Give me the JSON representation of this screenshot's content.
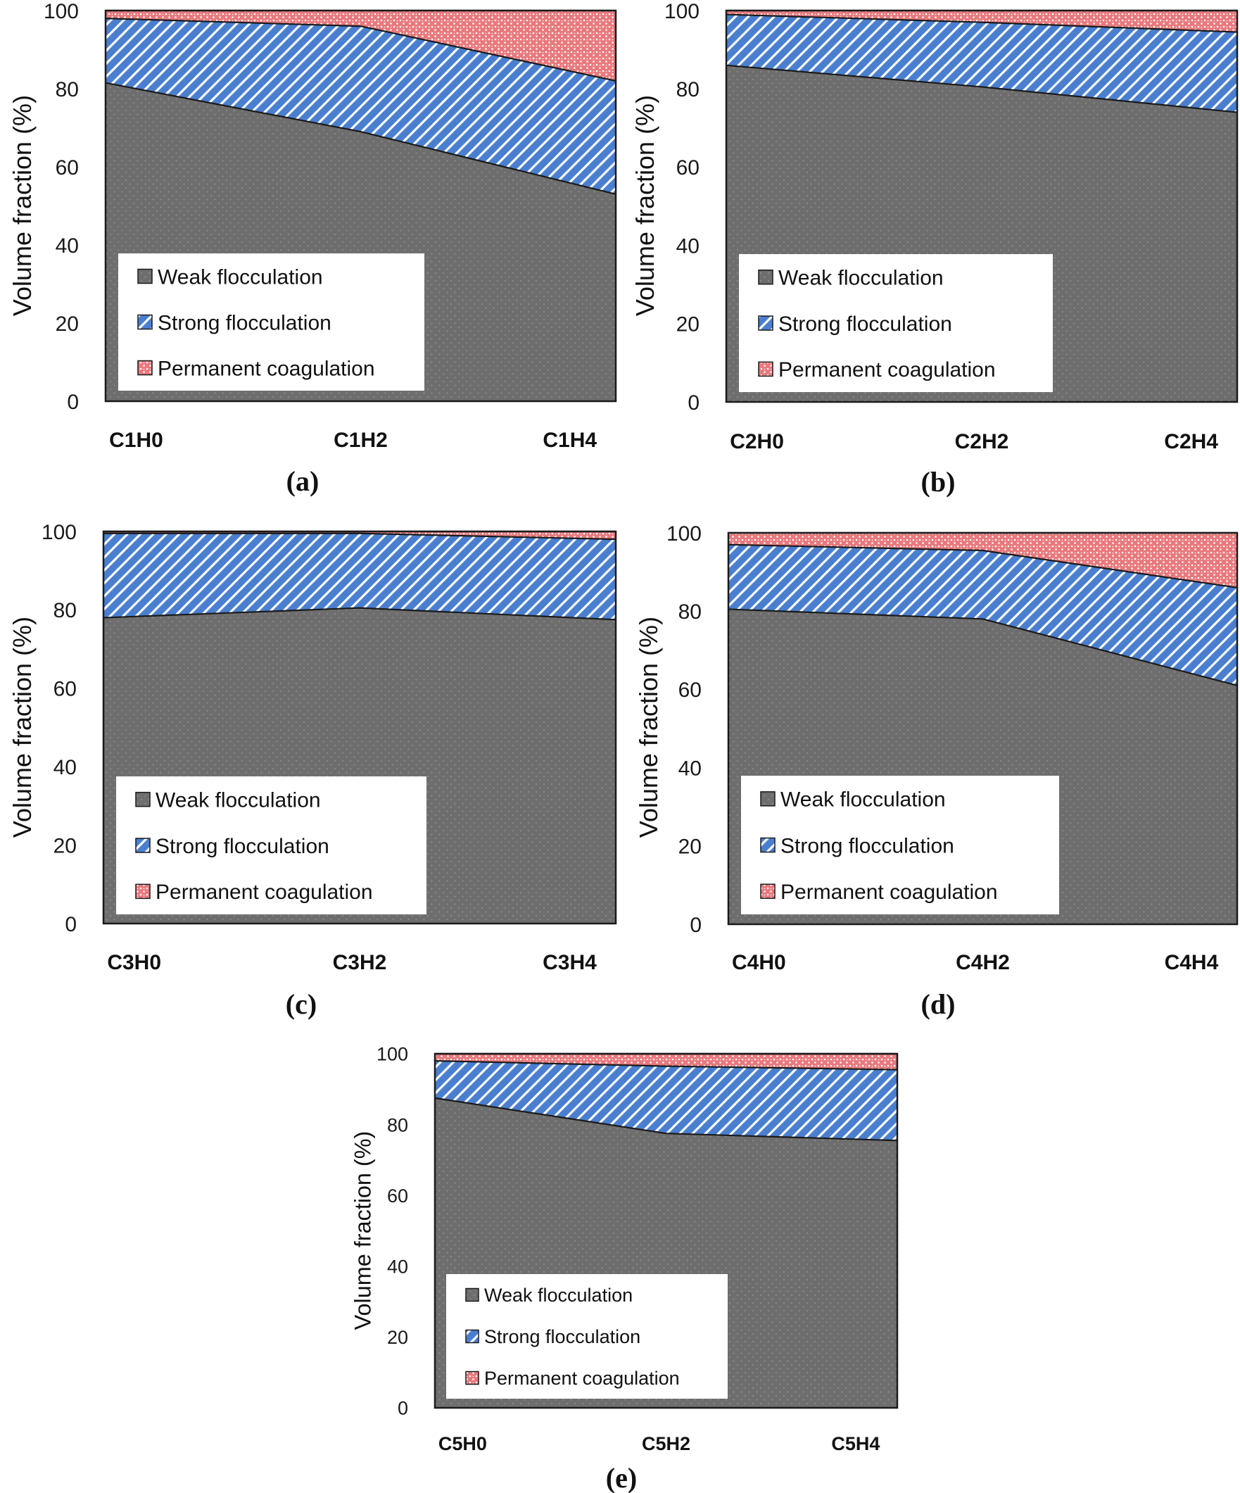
{
  "figure": {
    "y_axis_label": "Volume fraction (%)",
    "y_ticks": [
      "0",
      "20",
      "40",
      "60",
      "80",
      "100"
    ],
    "legend": [
      "Weak flocculation",
      "Strong flocculation",
      "Permanent coagulation"
    ],
    "colors": {
      "weak": "#6e6e6e",
      "weak_dot": "#9a9a9a",
      "strong": "#4a7fd0",
      "strong_stripe": "#ffffff",
      "permanent": "#e8797d",
      "permanent_dot": "#ffffff",
      "legend_bg": "#ffffff"
    }
  },
  "chart_data": [
    {
      "type": "area",
      "stacked": true,
      "panel_label": "a",
      "categories": [
        "C1H0",
        "C1H2",
        "C1H4"
      ],
      "ylabel": "Volume fraction (%)",
      "ylim": [
        0,
        100
      ],
      "legend_position": "bottom-left",
      "series": [
        {
          "name": "Weak flocculation",
          "values": [
            81.5,
            69,
            53
          ]
        },
        {
          "name": "Strong flocculation",
          "values": [
            16.5,
            27,
            29
          ]
        },
        {
          "name": "Permanent coagulation",
          "values": [
            2,
            4,
            18
          ]
        }
      ]
    },
    {
      "type": "area",
      "stacked": true,
      "panel_label": "b",
      "categories": [
        "C2H0",
        "C2H2",
        "C2H4"
      ],
      "ylabel": "Volume fraction (%)",
      "ylim": [
        0,
        100
      ],
      "legend_position": "bottom-left",
      "series": [
        {
          "name": "Weak flocculation",
          "values": [
            86,
            80.5,
            74
          ]
        },
        {
          "name": "Strong flocculation",
          "values": [
            13,
            16.5,
            20.5
          ]
        },
        {
          "name": "Permanent coagulation",
          "values": [
            1,
            3,
            5.5
          ]
        }
      ]
    },
    {
      "type": "area",
      "stacked": true,
      "panel_label": "c",
      "categories": [
        "C3H0",
        "C3H2",
        "C3H4"
      ],
      "ylabel": "Volume fraction (%)",
      "ylim": [
        0,
        100
      ],
      "legend_position": "bottom-left",
      "series": [
        {
          "name": "Weak flocculation",
          "values": [
            78,
            80.5,
            77.5
          ]
        },
        {
          "name": "Strong flocculation",
          "values": [
            21.5,
            19,
            20.5
          ]
        },
        {
          "name": "Permanent coagulation",
          "values": [
            0.5,
            0.5,
            2
          ]
        }
      ]
    },
    {
      "type": "area",
      "stacked": true,
      "panel_label": "d",
      "categories": [
        "C4H0",
        "C4H2",
        "C4H4"
      ],
      "ylabel": "Volume fraction (%)",
      "ylim": [
        0,
        100
      ],
      "legend_position": "bottom-left",
      "series": [
        {
          "name": "Weak flocculation",
          "values": [
            80.5,
            78,
            61
          ]
        },
        {
          "name": "Strong flocculation",
          "values": [
            16.5,
            17.5,
            25
          ]
        },
        {
          "name": "Permanent coagulation",
          "values": [
            3,
            4.5,
            14
          ]
        }
      ]
    },
    {
      "type": "area",
      "stacked": true,
      "panel_label": "e",
      "categories": [
        "C5H0",
        "C5H2",
        "C5H4"
      ],
      "ylabel": "Volume fraction (%)",
      "ylim": [
        0,
        100
      ],
      "legend_position": "bottom-left",
      "series": [
        {
          "name": "Weak flocculation",
          "values": [
            87.5,
            77.5,
            75.5
          ]
        },
        {
          "name": "Strong flocculation",
          "values": [
            10.5,
            19,
            20
          ]
        },
        {
          "name": "Permanent coagulation",
          "values": [
            2,
            3.5,
            4.5
          ]
        }
      ]
    }
  ]
}
